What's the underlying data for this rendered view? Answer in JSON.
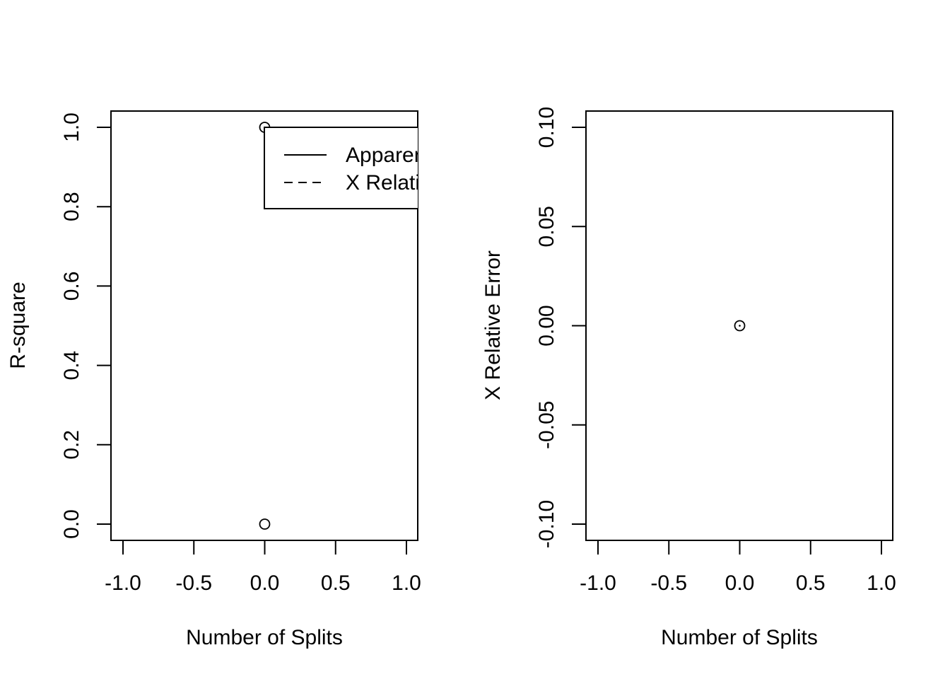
{
  "chart_data": [
    {
      "type": "scatter",
      "title": "",
      "xlabel": "Number of Splits",
      "ylabel": "R-square",
      "xlim": [
        -1.0,
        1.0
      ],
      "ylim": [
        0.0,
        1.0
      ],
      "xticks": [
        "-1.0",
        "-0.5",
        "0.0",
        "0.5",
        "1.0"
      ],
      "yticks": [
        "0.0",
        "0.2",
        "0.4",
        "0.6",
        "0.8",
        "1.0"
      ],
      "series": [
        {
          "name": "Apparent",
          "line": "solid",
          "x": [
            0
          ],
          "y": [
            1.0
          ]
        },
        {
          "name": "X Relative",
          "line": "dashed",
          "x": [
            0
          ],
          "y": [
            0.0
          ]
        }
      ],
      "legend": {
        "position": "top-right",
        "entries": [
          {
            "label": "Apparent",
            "line": "solid"
          },
          {
            "label": "X Relative",
            "line": "dashed"
          }
        ]
      },
      "grid": false
    },
    {
      "type": "scatter",
      "title": "",
      "xlabel": "Number of Splits",
      "ylabel": "X Relative Error",
      "xlim": [
        -1.0,
        1.0
      ],
      "ylim": [
        -0.1,
        0.1
      ],
      "xticks": [
        "-1.0",
        "-0.5",
        "0.0",
        "0.5",
        "1.0"
      ],
      "yticks": [
        "-0.10",
        "-0.05",
        "0.00",
        "0.05",
        "0.10"
      ],
      "series": [
        {
          "x": [
            0
          ],
          "y": [
            0.0
          ],
          "marker": "circle-dot"
        }
      ],
      "grid": false
    }
  ]
}
